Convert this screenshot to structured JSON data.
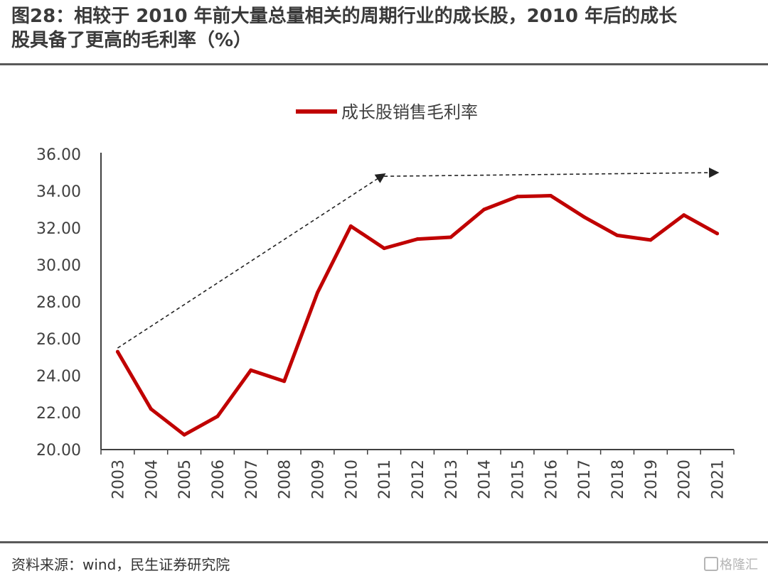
{
  "title": {
    "line1": "图28：相较于 2010 年前大量总量相关的周期行业的成长股，2010 年后的成长",
    "line2": "股具备了更高的毛利率（%）"
  },
  "source": "资料来源：wind，民生证券研究院",
  "watermark": "格隆汇",
  "colors": {
    "series": "#c00000",
    "axis": "#404040",
    "arrow": "#222222"
  },
  "chart_data": {
    "type": "line",
    "categories": [
      "2003",
      "2004",
      "2005",
      "2006",
      "2007",
      "2008",
      "2009",
      "2010",
      "2011",
      "2012",
      "2013",
      "2014",
      "2015",
      "2016",
      "2017",
      "2018",
      "2019",
      "2020",
      "2021"
    ],
    "series": [
      {
        "name": "成长股销售毛利率",
        "values": [
          25.3,
          22.2,
          20.8,
          21.8,
          24.3,
          23.7,
          28.5,
          32.1,
          30.9,
          31.4,
          31.5,
          33.0,
          33.7,
          33.75,
          32.6,
          31.6,
          31.35,
          32.7,
          31.7
        ]
      }
    ],
    "yticks": [
      "20.00",
      "22.00",
      "24.00",
      "26.00",
      "28.00",
      "30.00",
      "32.00",
      "34.00",
      "36.00"
    ],
    "ylim": [
      20,
      36
    ],
    "legend_position": "top",
    "grid": false,
    "annotations": [
      {
        "type": "dashed-arrow",
        "from": [
          "2003",
          25.5
        ],
        "to": [
          "2011",
          34.9
        ]
      },
      {
        "type": "dashed-arrow",
        "from": [
          "2011",
          34.8
        ],
        "to": [
          "2021",
          35.0
        ]
      }
    ]
  }
}
